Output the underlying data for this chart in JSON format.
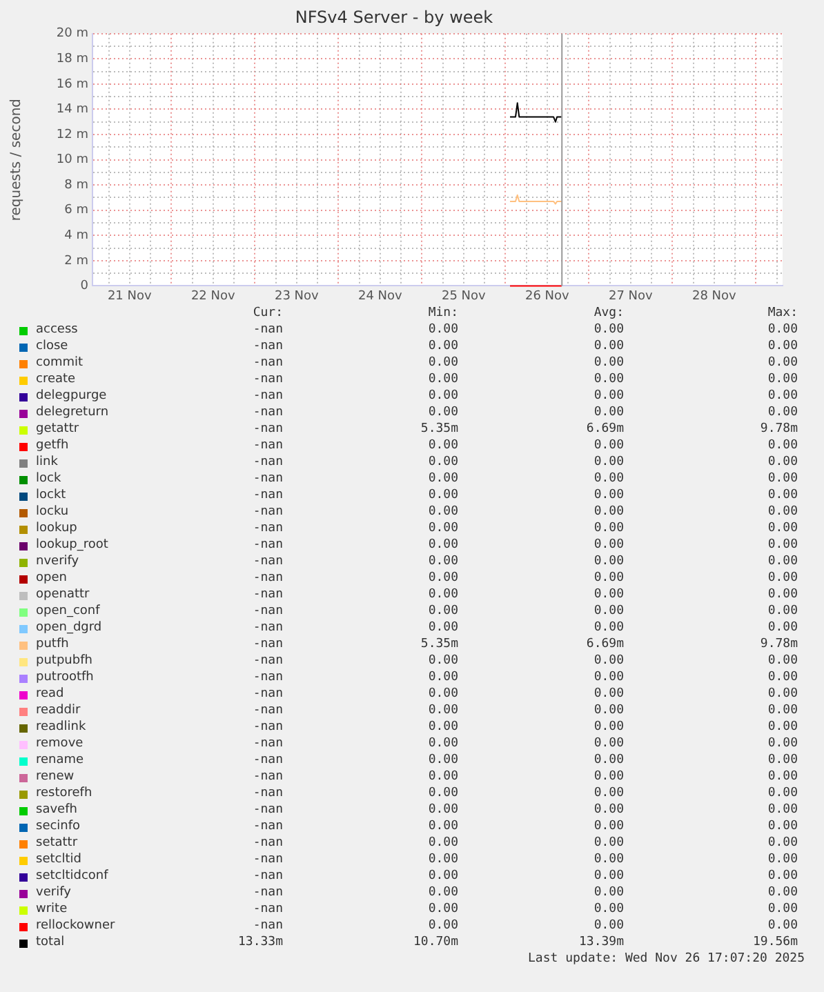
{
  "chart_data": {
    "type": "line",
    "title": "NFSv4 Server - by week",
    "ylabel": "requests / second",
    "x": [
      "2025-11-26T01:20",
      "2025-11-26T02:55",
      "2025-11-26T03:27",
      "2025-11-26T03:58",
      "2025-11-26T13:50",
      "2025-11-26T14:24",
      "2025-11-26T14:50",
      "2025-11-26T16:10"
    ],
    "xlim": [
      "2025-11-21T01:20",
      "2025-11-29T07:40"
    ],
    "xticks": [
      {
        "value": "2025-11-21T06:00",
        "label": null
      },
      {
        "value": "2025-11-21T12:00",
        "label": "21 Nov"
      },
      {
        "value": "2025-11-21T18:00",
        "label": null
      },
      {
        "value": "2025-11-22T00:00",
        "label": null
      },
      {
        "value": "2025-11-22T06:00",
        "label": null
      },
      {
        "value": "2025-11-22T12:00",
        "label": "22 Nov"
      },
      {
        "value": "2025-11-22T18:00",
        "label": null
      },
      {
        "value": "2025-11-23T00:00",
        "label": null
      },
      {
        "value": "2025-11-23T06:00",
        "label": null
      },
      {
        "value": "2025-11-23T12:00",
        "label": "23 Nov"
      },
      {
        "value": "2025-11-23T18:00",
        "label": null
      },
      {
        "value": "2025-11-24T00:00",
        "label": null
      },
      {
        "value": "2025-11-24T06:00",
        "label": null
      },
      {
        "value": "2025-11-24T12:00",
        "label": "24 Nov"
      },
      {
        "value": "2025-11-24T18:00",
        "label": null
      },
      {
        "value": "2025-11-25T00:00",
        "label": null
      },
      {
        "value": "2025-11-25T06:00",
        "label": null
      },
      {
        "value": "2025-11-25T12:00",
        "label": "25 Nov"
      },
      {
        "value": "2025-11-25T18:00",
        "label": null
      },
      {
        "value": "2025-11-26T00:00",
        "label": null
      },
      {
        "value": "2025-11-26T06:00",
        "label": null
      },
      {
        "value": "2025-11-26T12:00",
        "label": "26 Nov"
      },
      {
        "value": "2025-11-26T18:00",
        "label": null
      },
      {
        "value": "2025-11-27T00:00",
        "label": null
      },
      {
        "value": "2025-11-27T06:00",
        "label": null
      },
      {
        "value": "2025-11-27T12:00",
        "label": "27 Nov"
      },
      {
        "value": "2025-11-27T18:00",
        "label": null
      },
      {
        "value": "2025-11-28T00:00",
        "label": null
      },
      {
        "value": "2025-11-28T06:00",
        "label": null
      },
      {
        "value": "2025-11-28T12:00",
        "label": "28 Nov"
      },
      {
        "value": "2025-11-28T18:00",
        "label": null
      },
      {
        "value": "2025-11-29T00:00",
        "label": null
      },
      {
        "value": "2025-11-29T06:00",
        "label": null
      }
    ],
    "ylim": [
      0,
      20
    ],
    "yticks": [
      0,
      {
        "value": 1,
        "label": null
      },
      {
        "value": 2,
        "label": "2 m"
      },
      {
        "value": 3,
        "label": null
      },
      {
        "value": 4,
        "label": "4 m"
      },
      {
        "value": 5,
        "label": null
      },
      {
        "value": 6,
        "label": "6 m"
      },
      {
        "value": 7,
        "label": null
      },
      {
        "value": 8,
        "label": "8 m"
      },
      {
        "value": 9,
        "label": null
      },
      {
        "value": 10,
        "label": "10 m"
      },
      {
        "value": 11,
        "label": null
      },
      {
        "value": 12,
        "label": "12 m"
      },
      {
        "value": 13,
        "label": null
      },
      {
        "value": 14,
        "label": "14 m"
      },
      {
        "value": 15,
        "label": null
      },
      {
        "value": 16,
        "label": "16 m"
      },
      {
        "value": 17,
        "label": null
      },
      {
        "value": 18,
        "label": "18 m"
      },
      {
        "value": 19,
        "label": null
      },
      {
        "value": 20,
        "label": "20 m"
      }
    ],
    "grid": true,
    "legend": "bottom",
    "marker": "none",
    "line_style": "solid",
    "ref_lines": [
      {
        "axis": "x",
        "value": "2025-11-26T16:15",
        "color": "#999999"
      }
    ],
    "series": [
      {
        "name": "access",
        "color": "#00cc00",
        "values": [
          null,
          null,
          null,
          null,
          null,
          null,
          null,
          null
        ]
      },
      {
        "name": "close",
        "color": "#0066b3",
        "values": [
          null,
          null,
          null,
          null,
          null,
          null,
          null,
          null
        ]
      },
      {
        "name": "commit",
        "color": "#ff8000",
        "values": [
          null,
          null,
          null,
          null,
          null,
          null,
          null,
          null
        ]
      },
      {
        "name": "create",
        "color": "#ffcc00",
        "values": [
          null,
          null,
          null,
          null,
          null,
          null,
          null,
          null
        ]
      },
      {
        "name": "delegpurge",
        "color": "#330099",
        "values": [
          null,
          null,
          null,
          null,
          null,
          null,
          null,
          null
        ]
      },
      {
        "name": "delegreturn",
        "color": "#990099",
        "values": [
          null,
          null,
          null,
          null,
          null,
          null,
          null,
          null
        ]
      },
      {
        "name": "getattr",
        "color": "#ccff00",
        "values": [
          null,
          null,
          null,
          null,
          null,
          null,
          null,
          null
        ]
      },
      {
        "name": "getfh",
        "color": "#ff0000",
        "values": [
          null,
          null,
          null,
          null,
          null,
          null,
          null,
          null
        ]
      },
      {
        "name": "link",
        "color": "#808080",
        "values": [
          null,
          null,
          null,
          null,
          null,
          null,
          null,
          null
        ]
      },
      {
        "name": "lock",
        "color": "#008f00",
        "values": [
          null,
          null,
          null,
          null,
          null,
          null,
          null,
          null
        ]
      },
      {
        "name": "lockt",
        "color": "#00487d",
        "values": [
          null,
          null,
          null,
          null,
          null,
          null,
          null,
          null
        ]
      },
      {
        "name": "locku",
        "color": "#b35a00",
        "values": [
          null,
          null,
          null,
          null,
          null,
          null,
          null,
          null
        ]
      },
      {
        "name": "lookup",
        "color": "#b38f00",
        "values": [
          null,
          null,
          null,
          null,
          null,
          null,
          null,
          null
        ]
      },
      {
        "name": "lookup_root",
        "color": "#6b006b",
        "values": [
          null,
          null,
          null,
          null,
          null,
          null,
          null,
          null
        ]
      },
      {
        "name": "nverify",
        "color": "#8fb300",
        "values": [
          null,
          null,
          null,
          null,
          null,
          null,
          null,
          null
        ]
      },
      {
        "name": "open",
        "color": "#b30000",
        "values": [
          null,
          null,
          null,
          null,
          null,
          null,
          null,
          null
        ]
      },
      {
        "name": "openattr",
        "color": "#bebebe",
        "values": [
          null,
          null,
          null,
          null,
          null,
          null,
          null,
          null
        ]
      },
      {
        "name": "open_conf",
        "color": "#80ff80",
        "values": [
          null,
          null,
          null,
          null,
          null,
          null,
          null,
          null
        ]
      },
      {
        "name": "open_dgrd",
        "color": "#80c9ff",
        "values": [
          null,
          null,
          null,
          null,
          null,
          null,
          null,
          null
        ]
      },
      {
        "name": "putfh",
        "color": "#ffc080",
        "values": [
          6.7,
          6.7,
          7.2,
          6.7,
          6.7,
          6.5,
          6.7,
          6.7
        ]
      },
      {
        "name": "putpubfh",
        "color": "#ffe680",
        "values": [
          null,
          null,
          null,
          null,
          null,
          null,
          null,
          null
        ]
      },
      {
        "name": "putrootfh",
        "color": "#aa80ff",
        "values": [
          null,
          null,
          null,
          null,
          null,
          null,
          null,
          null
        ]
      },
      {
        "name": "read",
        "color": "#ee00cc",
        "values": [
          null,
          null,
          null,
          null,
          null,
          null,
          null,
          null
        ]
      },
      {
        "name": "readdir",
        "color": "#ff8080",
        "values": [
          null,
          null,
          null,
          null,
          null,
          null,
          null,
          null
        ]
      },
      {
        "name": "readlink",
        "color": "#666600",
        "values": [
          null,
          null,
          null,
          null,
          null,
          null,
          null,
          null
        ]
      },
      {
        "name": "remove",
        "color": "#ffbfff",
        "values": [
          null,
          null,
          null,
          null,
          null,
          null,
          null,
          null
        ]
      },
      {
        "name": "rename",
        "color": "#00ffcc",
        "values": [
          null,
          null,
          null,
          null,
          null,
          null,
          null,
          null
        ]
      },
      {
        "name": "renew",
        "color": "#cc6699",
        "values": [
          null,
          null,
          null,
          null,
          null,
          null,
          null,
          null
        ]
      },
      {
        "name": "restorefh",
        "color": "#999900",
        "values": [
          null,
          null,
          null,
          null,
          null,
          null,
          null,
          null
        ]
      },
      {
        "name": "savefh",
        "color": "#00cc00",
        "values": [
          null,
          null,
          null,
          null,
          null,
          null,
          null,
          null
        ]
      },
      {
        "name": "secinfo",
        "color": "#0066b3",
        "values": [
          null,
          null,
          null,
          null,
          null,
          null,
          null,
          null
        ]
      },
      {
        "name": "setattr",
        "color": "#ff8000",
        "values": [
          null,
          null,
          null,
          null,
          null,
          null,
          null,
          null
        ]
      },
      {
        "name": "setcltid",
        "color": "#ffcc00",
        "values": [
          null,
          null,
          null,
          null,
          null,
          null,
          null,
          null
        ]
      },
      {
        "name": "setcltidconf",
        "color": "#330099",
        "values": [
          null,
          null,
          null,
          null,
          null,
          null,
          null,
          null
        ]
      },
      {
        "name": "verify",
        "color": "#990099",
        "values": [
          null,
          null,
          null,
          null,
          null,
          null,
          null,
          null
        ]
      },
      {
        "name": "write",
        "color": "#ccff00",
        "values": [
          null,
          null,
          null,
          null,
          null,
          null,
          null,
          null
        ]
      },
      {
        "name": "rellockowner",
        "color": "#ff0000",
        "values": [
          0,
          0,
          0,
          0,
          0,
          0,
          0,
          0
        ]
      },
      {
        "name": "total",
        "color": "#000000",
        "values": [
          13.4,
          13.4,
          14.5,
          13.4,
          13.4,
          13.0,
          13.4,
          13.4
        ]
      }
    ],
    "annotations": [
      "Cur:",
      "Min:",
      "Avg:",
      "Max:",
      "-nan",
      "0.00",
      "0.00",
      "0.00",
      "-nan",
      "0.00",
      "0.00",
      "0.00",
      "-nan",
      "0.00",
      "0.00",
      "0.00",
      "-nan",
      "0.00",
      "0.00",
      "0.00",
      "-nan",
      "0.00",
      "0.00",
      "0.00",
      "-nan",
      "0.00",
      "0.00",
      "0.00",
      "-nan",
      "5.35m",
      "6.69m",
      "9.78m",
      "-nan",
      "0.00",
      "0.00",
      "0.00",
      "-nan",
      "0.00",
      "0.00",
      "0.00",
      "-nan",
      "0.00",
      "0.00",
      "0.00",
      "-nan",
      "0.00",
      "0.00",
      "0.00",
      "-nan",
      "0.00",
      "0.00",
      "0.00",
      "-nan",
      "0.00",
      "0.00",
      "0.00",
      "-nan",
      "0.00",
      "0.00",
      "0.00",
      "-nan",
      "0.00",
      "0.00",
      "0.00",
      "-nan",
      "0.00",
      "0.00",
      "0.00",
      "-nan",
      "0.00",
      "0.00",
      "0.00",
      "-nan",
      "0.00",
      "0.00",
      "0.00",
      "-nan",
      "0.00",
      "0.00",
      "0.00",
      "-nan",
      "5.35m",
      "6.69m",
      "9.78m",
      "-nan",
      "0.00",
      "0.00",
      "0.00",
      "-nan",
      "0.00",
      "0.00",
      "0.00",
      "-nan",
      "0.00",
      "0.00",
      "0.00",
      "-nan",
      "0.00",
      "0.00",
      "0.00",
      "-nan",
      "0.00",
      "0.00",
      "0.00",
      "-nan",
      "0.00",
      "0.00",
      "0.00",
      "-nan",
      "0.00",
      "0.00",
      "0.00",
      "-nan",
      "0.00",
      "0.00",
      "0.00",
      "-nan",
      "0.00",
      "0.00",
      "0.00",
      "-nan",
      "0.00",
      "0.00",
      "0.00",
      "-nan",
      "0.00",
      "0.00",
      "0.00",
      "-nan",
      "0.00",
      "0.00",
      "0.00",
      "-nan",
      "0.00",
      "0.00",
      "0.00",
      "-nan",
      "0.00",
      "0.00",
      "0.00",
      "-nan",
      "0.00",
      "0.00",
      "0.00",
      "-nan",
      "0.00",
      "0.00",
      "0.00",
      "-nan",
      "0.00",
      "0.00",
      "0.00",
      "13.33m",
      "10.70m",
      "13.39m",
      "19.56m",
      "Last update: Wed Nov 26 17:07:20 2025"
    ]
  }
}
